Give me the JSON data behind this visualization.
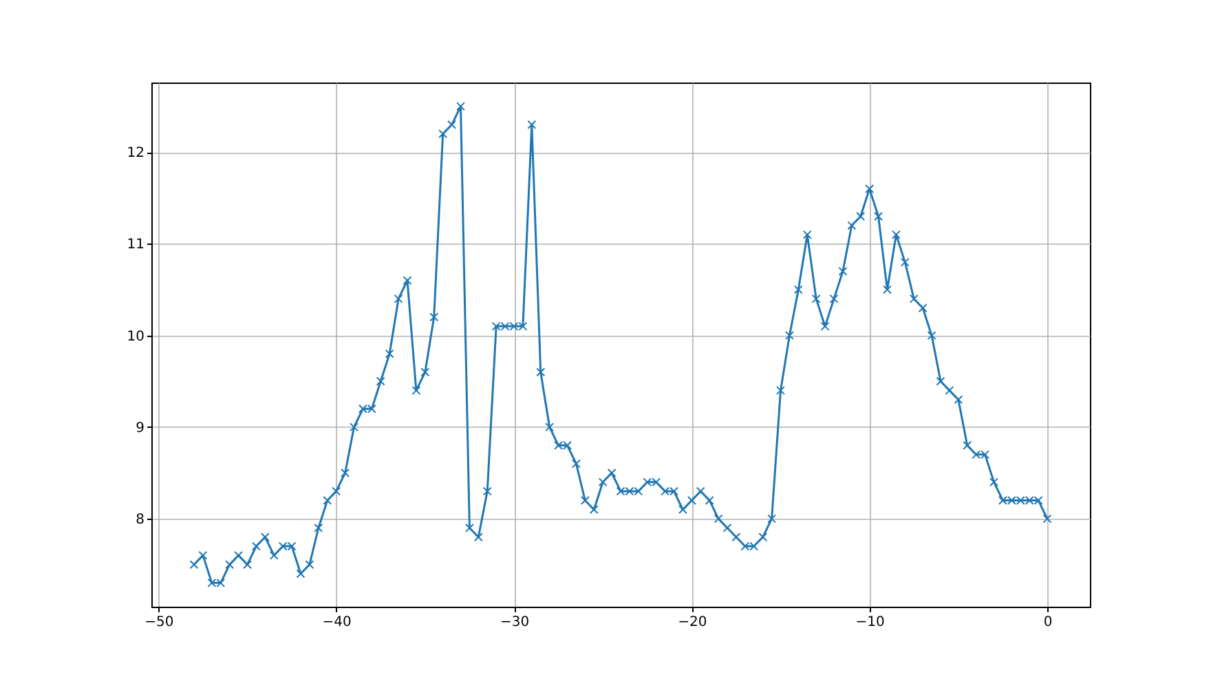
{
  "chart_data": {
    "type": "line",
    "xlim": [
      -50.4,
      2.4
    ],
    "ylim": [
      7.04,
      12.76
    ],
    "xticks": [
      -50,
      -40,
      -30,
      -20,
      -10,
      0
    ],
    "yticks": [
      8,
      9,
      10,
      11,
      12
    ],
    "grid": true,
    "marker": "cross",
    "line_style": "solid",
    "series": [
      {
        "color": "#1f77b4",
        "x": [
          -48,
          -47.5,
          -47,
          -46.5,
          -46,
          -45.5,
          -45,
          -44.5,
          -44,
          -43.5,
          -43,
          -42.5,
          -42,
          -41.5,
          -41,
          -40.5,
          -40,
          -39.5,
          -39,
          -38.5,
          -38,
          -37.5,
          -37,
          -36.5,
          -36,
          -35.5,
          -35,
          -34.5,
          -34,
          -33.5,
          -33,
          -32.5,
          -32,
          -31.5,
          -31,
          -30.5,
          -30,
          -29.5,
          -29,
          -28.5,
          -28,
          -27.5,
          -27,
          -26.5,
          -26,
          -25.5,
          -25,
          -24.5,
          -24,
          -23.5,
          -23,
          -22.5,
          -22,
          -21.5,
          -21,
          -20.5,
          -20,
          -19.5,
          -19,
          -18.5,
          -18,
          -17.5,
          -17,
          -16.5,
          -16,
          -15.5,
          -15,
          -14.5,
          -14,
          -13.5,
          -13,
          -12.5,
          -12,
          -11.5,
          -11,
          -10.5,
          -10,
          -9.5,
          -9,
          -8.5,
          -8,
          -7.5,
          -7,
          -6.5,
          -6,
          -5.5,
          -5,
          -4.5,
          -4,
          -3.5,
          -3,
          -2.5,
          -2,
          -1.5,
          -1,
          -0.5,
          0
        ],
        "values": [
          7.5,
          7.6,
          7.3,
          7.3,
          7.5,
          7.6,
          7.5,
          7.7,
          7.8,
          7.6,
          7.7,
          7.7,
          7.4,
          7.5,
          7.9,
          8.2,
          8.3,
          8.5,
          9.0,
          9.2,
          9.2,
          9.5,
          9.8,
          10.4,
          10.6,
          9.4,
          9.6,
          10.2,
          12.2,
          12.3,
          12.5,
          7.9,
          7.8,
          8.3,
          10.1,
          10.1,
          10.1,
          10.1,
          12.3,
          9.6,
          9.0,
          8.8,
          8.8,
          8.6,
          8.2,
          8.1,
          8.4,
          8.5,
          8.3,
          8.3,
          8.3,
          8.4,
          8.4,
          8.3,
          8.3,
          8.1,
          8.2,
          8.3,
          8.2,
          8.0,
          7.9,
          7.8,
          7.7,
          7.7,
          7.8,
          8.0,
          9.4,
          10.0,
          10.5,
          11.1,
          10.4,
          10.1,
          10.4,
          10.7,
          11.2,
          11.3,
          11.6,
          11.3,
          10.5,
          11.1,
          10.8,
          10.4,
          10.3,
          10.0,
          9.5,
          9.4,
          9.3,
          8.8,
          8.7,
          8.7,
          8.4,
          8.2,
          8.2,
          8.2,
          8.2,
          8.2,
          8.0
        ]
      }
    ]
  }
}
